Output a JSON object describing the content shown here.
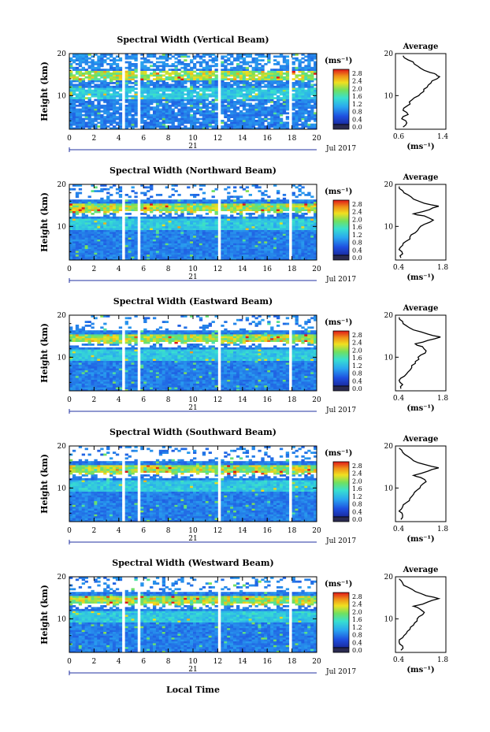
{
  "figure": {
    "xlabel": "Local Time",
    "date_label": "Jul 2017",
    "day_label": "21",
    "ylabel": "Height (km)",
    "colorbar_unit": "(ms⁻¹)",
    "colorbar_ticks": [
      "0.0",
      "0.4",
      "0.8",
      "1.2",
      "1.6",
      "2.0",
      "2.4",
      "2.8"
    ],
    "average_title": "Average",
    "average_xlabel": "(ms⁻¹)",
    "colors": {
      "low": "#1a2aa0",
      "mid": "#2aa7f0",
      "high": "#e01818",
      "gap": "#ffffff"
    }
  },
  "chart_data": [
    {
      "type": "heatmap",
      "title": "Spectral Width (Vertical Beam)",
      "xlim": [
        0,
        20
      ],
      "x_ticks": [
        "0",
        "2",
        "4",
        "6",
        "8",
        "10",
        "12",
        "14",
        "16",
        "18",
        "20"
      ],
      "ylim": [
        2,
        20
      ],
      "y_ticks": [
        "10",
        "20"
      ],
      "data_gaps_hours": [
        [
          4.3,
          4.6
        ],
        [
          5.4,
          5.7
        ],
        [
          12.0,
          12.3
        ],
        [
          17.7,
          18.0
        ]
      ],
      "average_profile": {
        "xlim": [
          0.6,
          1.4
        ],
        "x_ticks": [
          "0.6",
          "1.4"
        ],
        "ylim": [
          2,
          20
        ],
        "y_ticks": [
          "10",
          "20"
        ],
        "points": [
          [
            0.72,
            2.5
          ],
          [
            0.78,
            3.5
          ],
          [
            0.7,
            4.5
          ],
          [
            0.8,
            5.5
          ],
          [
            0.72,
            6.5
          ],
          [
            0.78,
            7.5
          ],
          [
            0.82,
            8.5
          ],
          [
            0.9,
            9.5
          ],
          [
            1.0,
            10.5
          ],
          [
            1.05,
            11.5
          ],
          [
            1.12,
            12.5
          ],
          [
            1.18,
            13.5
          ],
          [
            1.3,
            14.5
          ],
          [
            1.25,
            15.0
          ],
          [
            1.15,
            15.5
          ],
          [
            1.0,
            16.5
          ],
          [
            0.9,
            17.5
          ],
          [
            0.8,
            18.5
          ],
          [
            0.72,
            19.5
          ]
        ]
      }
    },
    {
      "type": "heatmap",
      "title": "Spectral Width (Northward Beam)",
      "xlim": [
        0,
        20
      ],
      "x_ticks": [
        "0",
        "2",
        "4",
        "6",
        "8",
        "10",
        "12",
        "14",
        "16",
        "18",
        "20"
      ],
      "ylim": [
        2,
        20
      ],
      "y_ticks": [
        "10",
        "20"
      ],
      "data_gaps_hours": [
        [
          4.3,
          4.6
        ],
        [
          5.4,
          5.7
        ],
        [
          12.0,
          12.3
        ],
        [
          17.7,
          18.0
        ]
      ],
      "average_profile": {
        "xlim": [
          0.4,
          1.8
        ],
        "x_ticks": [
          "0.4",
          "1.8"
        ],
        "ylim": [
          2,
          20
        ],
        "y_ticks": [
          "10",
          "20"
        ],
        "points": [
          [
            0.55,
            2.5
          ],
          [
            0.6,
            3.5
          ],
          [
            0.5,
            4.5
          ],
          [
            0.6,
            5.5
          ],
          [
            0.7,
            6.5
          ],
          [
            0.8,
            7.5
          ],
          [
            0.95,
            8.5
          ],
          [
            1.05,
            9.5
          ],
          [
            1.2,
            10.5
          ],
          [
            1.45,
            11.5
          ],
          [
            1.2,
            12.5
          ],
          [
            0.9,
            13.0
          ],
          [
            1.35,
            14.0
          ],
          [
            1.6,
            14.8
          ],
          [
            1.2,
            15.5
          ],
          [
            0.9,
            16.5
          ],
          [
            0.75,
            17.5
          ],
          [
            0.6,
            18.5
          ],
          [
            0.5,
            19.5
          ]
        ]
      }
    },
    {
      "type": "heatmap",
      "title": "Spectral Width (Eastward Beam)",
      "xlim": [
        0,
        20
      ],
      "x_ticks": [
        "0",
        "2",
        "4",
        "6",
        "8",
        "10",
        "12",
        "14",
        "16",
        "18",
        "20"
      ],
      "ylim": [
        2,
        20
      ],
      "y_ticks": [
        "10",
        "20"
      ],
      "data_gaps_hours": [
        [
          4.3,
          4.6
        ],
        [
          5.4,
          5.7
        ],
        [
          12.0,
          12.3
        ],
        [
          17.7,
          18.0
        ]
      ],
      "average_profile": {
        "xlim": [
          0.4,
          1.8
        ],
        "x_ticks": [
          "0.4",
          "1.8"
        ],
        "ylim": [
          2,
          20
        ],
        "y_ticks": [
          "10",
          "20"
        ],
        "points": [
          [
            0.55,
            2.5
          ],
          [
            0.6,
            3.5
          ],
          [
            0.5,
            4.5
          ],
          [
            0.65,
            5.5
          ],
          [
            0.75,
            6.5
          ],
          [
            0.85,
            7.5
          ],
          [
            0.95,
            8.5
          ],
          [
            1.05,
            9.5
          ],
          [
            1.1,
            10.5
          ],
          [
            1.25,
            11.5
          ],
          [
            1.15,
            12.5
          ],
          [
            0.95,
            13.2
          ],
          [
            1.3,
            14.0
          ],
          [
            1.65,
            14.8
          ],
          [
            1.3,
            15.5
          ],
          [
            0.9,
            16.5
          ],
          [
            0.7,
            17.5
          ],
          [
            0.6,
            18.5
          ],
          [
            0.5,
            19.5
          ]
        ]
      }
    },
    {
      "type": "heatmap",
      "title": "Spectral Width (Southward Beam)",
      "xlim": [
        0,
        20
      ],
      "x_ticks": [
        "0",
        "2",
        "4",
        "6",
        "8",
        "10",
        "12",
        "14",
        "16",
        "18",
        "20"
      ],
      "ylim": [
        2,
        20
      ],
      "y_ticks": [
        "10",
        "20"
      ],
      "data_gaps_hours": [
        [
          4.3,
          4.6
        ],
        [
          5.4,
          5.7
        ],
        [
          12.0,
          12.3
        ],
        [
          17.7,
          18.0
        ]
      ],
      "average_profile": {
        "xlim": [
          0.4,
          1.8
        ],
        "x_ticks": [
          "0.4",
          "1.8"
        ],
        "ylim": [
          2,
          20
        ],
        "y_ticks": [
          "10",
          "20"
        ],
        "points": [
          [
            0.55,
            2.5
          ],
          [
            0.6,
            3.5
          ],
          [
            0.5,
            4.5
          ],
          [
            0.6,
            5.5
          ],
          [
            0.7,
            6.5
          ],
          [
            0.8,
            7.5
          ],
          [
            0.9,
            8.5
          ],
          [
            1.0,
            9.5
          ],
          [
            1.1,
            10.5
          ],
          [
            1.25,
            11.5
          ],
          [
            1.1,
            12.5
          ],
          [
            0.9,
            13.0
          ],
          [
            1.3,
            14.0
          ],
          [
            1.6,
            14.8
          ],
          [
            1.25,
            15.5
          ],
          [
            0.9,
            16.5
          ],
          [
            0.75,
            17.5
          ],
          [
            0.6,
            18.5
          ],
          [
            0.5,
            19.5
          ]
        ]
      }
    },
    {
      "type": "heatmap",
      "title": "Spectral Width (Westward Beam)",
      "xlim": [
        0,
        20
      ],
      "x_ticks": [
        "0",
        "2",
        "4",
        "6",
        "8",
        "10",
        "12",
        "14",
        "16",
        "18",
        "20"
      ],
      "ylim": [
        2,
        20
      ],
      "y_ticks": [
        "10",
        "20"
      ],
      "data_gaps_hours": [
        [
          4.3,
          4.6
        ],
        [
          5.4,
          5.7
        ],
        [
          12.0,
          12.3
        ],
        [
          17.7,
          18.0
        ]
      ],
      "average_profile": {
        "xlim": [
          0.4,
          1.8
        ],
        "x_ticks": [
          "0.4",
          "1.8"
        ],
        "ylim": [
          2,
          20
        ],
        "y_ticks": [
          "10",
          "20"
        ],
        "points": [
          [
            0.55,
            2.5
          ],
          [
            0.6,
            3.5
          ],
          [
            0.5,
            4.5
          ],
          [
            0.6,
            5.5
          ],
          [
            0.7,
            6.5
          ],
          [
            0.8,
            7.5
          ],
          [
            0.9,
            8.5
          ],
          [
            1.0,
            9.5
          ],
          [
            1.05,
            10.5
          ],
          [
            1.2,
            11.5
          ],
          [
            1.05,
            12.5
          ],
          [
            0.9,
            13.0
          ],
          [
            1.3,
            14.0
          ],
          [
            1.6,
            14.8
          ],
          [
            1.25,
            15.5
          ],
          [
            0.95,
            16.5
          ],
          [
            0.75,
            17.5
          ],
          [
            0.6,
            18.5
          ],
          [
            0.5,
            19.5
          ]
        ]
      }
    }
  ]
}
